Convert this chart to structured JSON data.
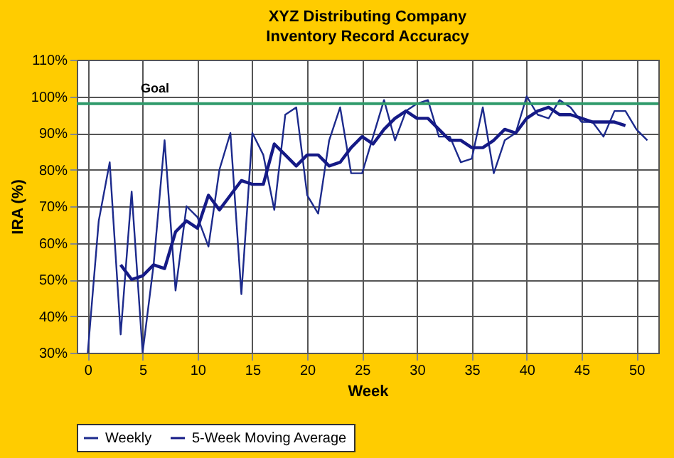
{
  "chart_data": {
    "type": "line",
    "title": "XYZ Distributing Company",
    "subtitle": "Inventory Record Accuracy",
    "xlabel": "Week",
    "ylabel": "IRA (%)",
    "x": [
      0,
      1,
      2,
      3,
      4,
      5,
      6,
      7,
      8,
      9,
      10,
      11,
      12,
      13,
      14,
      15,
      16,
      17,
      18,
      19,
      20,
      21,
      22,
      23,
      24,
      25,
      26,
      27,
      28,
      29,
      30,
      31,
      32,
      33,
      34,
      35,
      36,
      37,
      38,
      39,
      40,
      41,
      42,
      43,
      44,
      45,
      46,
      47,
      48,
      49,
      50,
      51
    ],
    "series": [
      {
        "name": "Weekly",
        "color": "#1c2a8c",
        "values": [
          30,
          66,
          82,
          35,
          74,
          30,
          54,
          88,
          47,
          70,
          67,
          59,
          80,
          90,
          46,
          90,
          84,
          69,
          95,
          97,
          73,
          68,
          88,
          97,
          79,
          79,
          89,
          99,
          88,
          96,
          98,
          99,
          89,
          89,
          82,
          83,
          97,
          79,
          88,
          90,
          100,
          95,
          94,
          99,
          97,
          93,
          93,
          89,
          96,
          96,
          91,
          88
        ]
      },
      {
        "name": "5-Week Moving Average",
        "color": "#151a86",
        "x": [
          3,
          4,
          5,
          6,
          7,
          8,
          9,
          10,
          11,
          12,
          13,
          14,
          15,
          16,
          17,
          18,
          19,
          20,
          21,
          22,
          23,
          24,
          25,
          26,
          27,
          28,
          29,
          30,
          31,
          32,
          33,
          34,
          35,
          36,
          37,
          38,
          39,
          40,
          41,
          42,
          43,
          44,
          45,
          46,
          47,
          48,
          49
        ],
        "values": [
          54,
          50,
          51,
          54,
          53,
          63,
          66,
          64,
          73,
          69,
          73,
          77,
          76,
          76,
          87,
          84,
          81,
          84,
          84,
          81,
          82,
          86,
          89,
          87,
          91,
          94,
          96,
          94,
          94,
          91,
          88,
          88,
          86,
          86,
          88,
          91,
          90,
          94,
          96,
          97,
          95,
          95,
          94,
          93,
          93,
          93,
          92
        ]
      }
    ],
    "xlim": [
      -1,
      52
    ],
    "xticks": [
      0,
      5,
      10,
      15,
      20,
      25,
      30,
      35,
      40,
      45,
      50
    ],
    "ylim": [
      30,
      110
    ],
    "yticks": [
      {
        "value": 30,
        "label": "30%"
      },
      {
        "value": 40,
        "label": "40%"
      },
      {
        "value": 50,
        "label": "50%"
      },
      {
        "value": 60,
        "label": "60%"
      },
      {
        "value": 70,
        "label": "70%"
      },
      {
        "value": 80,
        "label": "80%"
      },
      {
        "value": 90,
        "label": "90%"
      },
      {
        "value": 100,
        "label": "100%"
      },
      {
        "value": 110,
        "label": "110%"
      }
    ],
    "ref_lines": [
      {
        "axis": "y",
        "value": 98,
        "label": "Goal",
        "color": "#2e9a6a"
      }
    ],
    "grid": true,
    "legend": "bottom"
  }
}
